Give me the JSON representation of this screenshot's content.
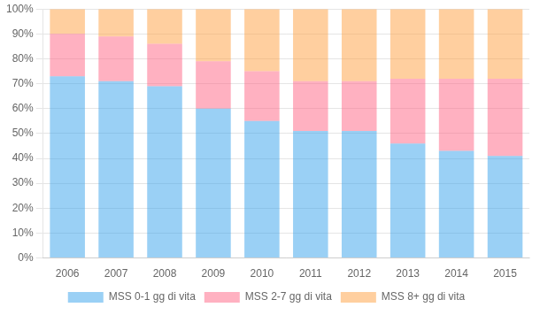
{
  "chart_data": {
    "type": "bar",
    "stacked": true,
    "categories": [
      "2006",
      "2007",
      "2008",
      "2009",
      "2010",
      "2011",
      "2012",
      "2013",
      "2014",
      "2015"
    ],
    "series": [
      {
        "name": "MSS 0-1 gg di vita",
        "values": [
          73,
          71,
          69,
          60,
          55,
          51,
          51,
          46,
          43,
          41
        ]
      },
      {
        "name": "MSS 2-7 gg di vita",
        "values": [
          17,
          18,
          17,
          19,
          20,
          20,
          20,
          26,
          29,
          31
        ]
      },
      {
        "name": "MSS 8+ gg di vita",
        "values": [
          10,
          11,
          14,
          21,
          25,
          29,
          29,
          28,
          28,
          28
        ]
      }
    ],
    "ylim": [
      0,
      100
    ],
    "yticks": [
      {
        "value": 0,
        "label": "0%"
      },
      {
        "value": 10,
        "label": "10%"
      },
      {
        "value": 20,
        "label": "20%"
      },
      {
        "value": 30,
        "label": "30%"
      },
      {
        "value": 40,
        "label": "40%"
      },
      {
        "value": 50,
        "label": "50%"
      },
      {
        "value": 60,
        "label": "60%"
      },
      {
        "value": 70,
        "label": "70%"
      },
      {
        "value": 80,
        "label": "80%"
      },
      {
        "value": 90,
        "label": "90%"
      },
      {
        "value": 100,
        "label": "100%"
      }
    ],
    "grid": true,
    "legend": "bottom"
  }
}
